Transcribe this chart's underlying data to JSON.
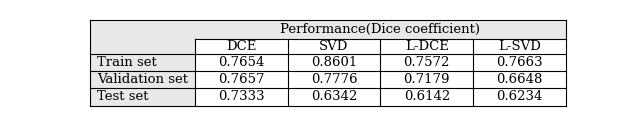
{
  "title": "Performance(Dice coefficient)",
  "col_headers": [
    "DCE",
    "SVD",
    "L-DCE",
    "L-SVD"
  ],
  "row_headers": [
    "Train set",
    "Validation set",
    "Test set"
  ],
  "data": [
    [
      "0.7654",
      "0.8601",
      "0.7572",
      "0.7663"
    ],
    [
      "0.7657",
      "0.7776",
      "0.7179",
      "0.6648"
    ],
    [
      "0.7333",
      "0.6342",
      "0.6142",
      "0.6234"
    ]
  ],
  "bg_color": "#e8e8e8",
  "font_size": 9.5,
  "lw": 0.8,
  "figsize": [
    6.4,
    1.24
  ],
  "dpi": 100
}
